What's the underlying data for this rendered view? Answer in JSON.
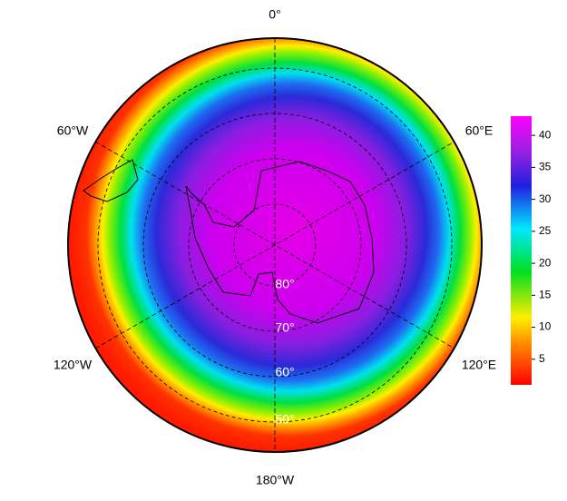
{
  "map": {
    "longitude_labels": [
      "0°",
      "60°E",
      "120°E",
      "180°W",
      "120°W",
      "60°W"
    ],
    "latitude_labels": [
      "80°",
      "70°",
      "60°",
      "50°"
    ]
  },
  "colorbar": {
    "range": [
      1,
      43
    ],
    "ticks": [
      5,
      10,
      15,
      20,
      25,
      30,
      35,
      40
    ]
  }
}
